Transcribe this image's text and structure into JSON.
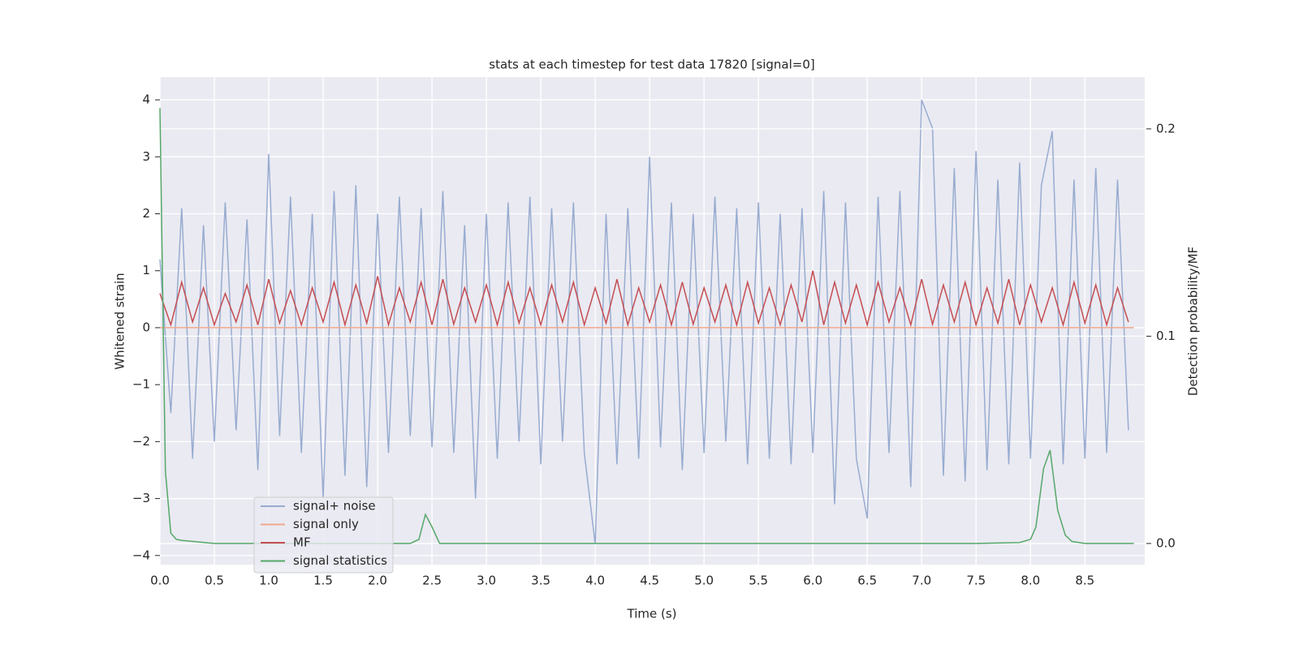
{
  "chart_data": {
    "type": "line",
    "title": "stats at each timestep for test data 17820 [signal=0]",
    "xlabel": "Time (s)",
    "ylabel": "Whitened strain",
    "y2label": "Detection probability/MF",
    "x": [
      0.0,
      0.1,
      0.2,
      0.3,
      0.4,
      0.5,
      0.6,
      0.7,
      0.8,
      0.9,
      1.0,
      1.1,
      1.2,
      1.3,
      1.4,
      1.5,
      1.6,
      1.7,
      1.8,
      1.9,
      2.0,
      2.1,
      2.2,
      2.3,
      2.4,
      2.5,
      2.6,
      2.7,
      2.8,
      2.9,
      3.0,
      3.1,
      3.2,
      3.3,
      3.4,
      3.5,
      3.6,
      3.7,
      3.8,
      3.9,
      4.0,
      4.1,
      4.2,
      4.3,
      4.4,
      4.5,
      4.6,
      4.7,
      4.8,
      4.9,
      5.0,
      5.1,
      5.2,
      5.3,
      5.4,
      5.5,
      5.6,
      5.7,
      5.8,
      5.9,
      6.0,
      6.1,
      6.2,
      6.3,
      6.4,
      6.5,
      6.6,
      6.7,
      6.8,
      6.9,
      7.0,
      7.1,
      7.2,
      7.3,
      7.4,
      7.5,
      7.6,
      7.7,
      7.8,
      7.9,
      8.0,
      8.1,
      8.2,
      8.3,
      8.4,
      8.5,
      8.6,
      8.7,
      8.8,
      8.9
    ],
    "series": [
      {
        "name": "signal+ noise",
        "color": "#98acd0",
        "values": [
          1.2,
          -1.5,
          2.1,
          -2.3,
          1.8,
          -2.0,
          2.2,
          -1.8,
          1.9,
          -2.5,
          3.05,
          -1.9,
          2.3,
          -2.2,
          2.0,
          -3.0,
          2.4,
          -2.6,
          2.5,
          -2.8,
          2.0,
          -2.2,
          2.3,
          -1.9,
          2.1,
          -2.1,
          2.4,
          -2.2,
          1.8,
          -3.0,
          2.0,
          -2.3,
          2.2,
          -2.0,
          2.3,
          -2.4,
          2.1,
          -2.0,
          2.2,
          -2.2,
          -3.8,
          2.0,
          -2.4,
          2.1,
          -2.3,
          3.0,
          -2.1,
          2.2,
          -2.5,
          2.0,
          -2.2,
          2.3,
          -2.0,
          2.1,
          -2.4,
          2.2,
          -2.3,
          2.0,
          -2.4,
          2.1,
          -2.2,
          2.4,
          -3.1,
          2.2,
          -2.3,
          -3.35,
          2.3,
          -2.2,
          2.4,
          -2.8,
          4.0,
          3.5,
          -2.6,
          2.8,
          -2.7,
          3.1,
          -2.5,
          2.6,
          -2.4,
          2.9,
          -2.3,
          2.5,
          3.45,
          -2.4,
          2.6,
          -2.3,
          2.8,
          -2.2,
          2.6,
          -1.8
        ]
      },
      {
        "name": "signal only",
        "color": "#eea98a",
        "x": [
          0.0,
          8.95
        ],
        "values": [
          0,
          0
        ]
      },
      {
        "name": "MF",
        "color": "#c44e52",
        "values": [
          0.6,
          0.05,
          0.8,
          0.1,
          0.7,
          0.05,
          0.6,
          0.1,
          0.75,
          0.05,
          0.85,
          0.08,
          0.65,
          0.05,
          0.7,
          0.1,
          0.8,
          0.05,
          0.75,
          0.08,
          0.9,
          0.05,
          0.7,
          0.1,
          0.8,
          0.05,
          0.85,
          0.06,
          0.7,
          0.1,
          0.75,
          0.05,
          0.8,
          0.08,
          0.7,
          0.05,
          0.75,
          0.1,
          0.8,
          0.05,
          0.7,
          0.08,
          0.85,
          0.05,
          0.7,
          0.1,
          0.75,
          0.05,
          0.8,
          0.06,
          0.7,
          0.1,
          0.75,
          0.05,
          0.8,
          0.08,
          0.7,
          0.05,
          0.75,
          0.1,
          1.0,
          0.05,
          0.8,
          0.08,
          0.75,
          0.05,
          0.8,
          0.1,
          0.7,
          0.05,
          0.85,
          0.06,
          0.75,
          0.1,
          0.8,
          0.05,
          0.7,
          0.08,
          0.85,
          0.05,
          0.75,
          0.1,
          0.7,
          0.05,
          0.8,
          0.08,
          0.75,
          0.05,
          0.7,
          0.1
        ]
      },
      {
        "name": "signal statistics",
        "color": "#55a868",
        "axis": "y2",
        "x": [
          0,
          0.05,
          0.1,
          0.15,
          0.2,
          0.3,
          0.5,
          1.0,
          1.5,
          2.0,
          2.3,
          2.38,
          2.44,
          2.5,
          2.57,
          3.0,
          4.0,
          5.0,
          6.0,
          7.0,
          7.5,
          7.9,
          8.0,
          8.05,
          8.12,
          8.18,
          8.25,
          8.32,
          8.38,
          8.5,
          8.95
        ],
        "values": [
          0.21,
          0.035,
          0.005,
          0.002,
          0.0015,
          0.001,
          0,
          0,
          0,
          0,
          0,
          0.002,
          0.014,
          0.008,
          0,
          0,
          0,
          0,
          0,
          0,
          0,
          0.0005,
          0.002,
          0.008,
          0.036,
          0.045,
          0.016,
          0.004,
          0.001,
          0,
          0
        ]
      }
    ],
    "xlim": [
      0,
      9.05
    ],
    "ylim": [
      -4.16,
      4.4
    ],
    "y2lim": [
      -0.0102,
      0.225
    ],
    "xticks": [
      {
        "value": 0,
        "label": "0.0"
      },
      0.5,
      {
        "value": 1,
        "label": "1.0"
      },
      1.5,
      {
        "value": 2,
        "label": "2.0"
      },
      2.5,
      {
        "value": 3,
        "label": "3.0"
      },
      3.5,
      {
        "value": 4,
        "label": "4.0"
      },
      4.5,
      {
        "value": 5,
        "label": "5.0"
      },
      5.5,
      {
        "value": 6,
        "label": "6.0"
      },
      6.5,
      {
        "value": 7,
        "label": "7.0"
      },
      7.5,
      {
        "value": 8,
        "label": "8.0"
      },
      8.5
    ],
    "yticks": [
      {
        "value": -4,
        "label": "−4"
      },
      {
        "value": -3,
        "label": "−3"
      },
      {
        "value": -2,
        "label": "−2"
      },
      {
        "value": -1,
        "label": "−1"
      },
      0,
      1,
      2,
      3,
      4
    ],
    "y2ticks": [
      {
        "value": 0,
        "label": "0.0"
      },
      0.1,
      0.2
    ],
    "grid": true,
    "legend": "lower left"
  }
}
